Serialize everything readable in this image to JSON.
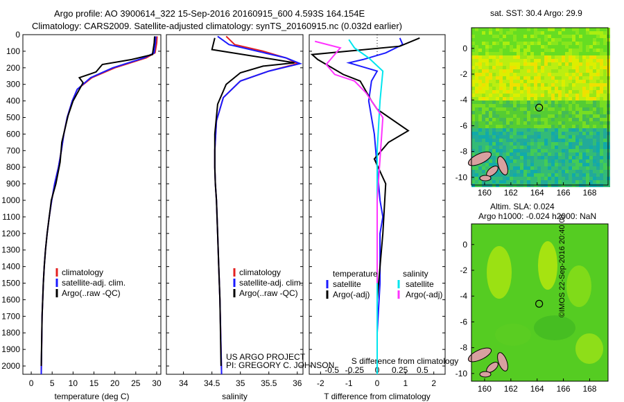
{
  "header": {
    "line1": "Argo profile: AO 3900614_322 15-Sep-2016 20160915_600 4.593S 164.154E",
    "line2": "Climatology: CARS2009. Satellite-adjusted climatology: synTS_20160915.nc (0.032d earlier)"
  },
  "sst_title": "sat. SST: 30.4  Argo: 29.9",
  "sla_title_1": "Altim. SLA: 0.024",
  "sla_title_2": "Argo h1000: -0.024  h2000: NaN",
  "side_stamp": "©IMOS 22-Sep-2016 20:40:08",
  "project": {
    "line1": "US ARGO PROJECT",
    "line2": "PI: GREGORY C. JOHNSON"
  },
  "colors": {
    "climatology": "#e32020",
    "satellite": "#1a1aff",
    "argo": "#000000",
    "argo_adj_salinity": "#ff33ff",
    "satellite_salinity": "#00e5ee"
  },
  "chart_data": [
    {
      "type": "line",
      "xlabel": "temperature (deg C)",
      "ylabel": "",
      "xlim": [
        -2,
        31
      ],
      "ylim": [
        2050,
        0
      ],
      "xticks": [
        "0",
        "5",
        "10",
        "15",
        "20",
        "25",
        "30"
      ],
      "yticks": [
        "0",
        "100",
        "200",
        "300",
        "400",
        "500",
        "600",
        "700",
        "800",
        "900",
        "1000",
        "1100",
        "1200",
        "1300",
        "1400",
        "1500",
        "1600",
        "1700",
        "1800",
        "1900",
        "2000"
      ],
      "legend": [
        "climatology",
        "satellite-adj. clim.",
        "Argo(..raw -QC)"
      ],
      "series": [
        {
          "name": "climatology",
          "color": "#e32020",
          "x": [
            30.1,
            30.0,
            29.6,
            27.5,
            20.0,
            14.5,
            11.0,
            9.8,
            8.6,
            7.8,
            7.2,
            6.5,
            5.6,
            4.9,
            4.3,
            3.8,
            3.4,
            3.1,
            2.9,
            2.6,
            2.4
          ],
          "y": [
            10,
            50,
            110,
            140,
            200,
            260,
            330,
            400,
            500,
            600,
            700,
            800,
            900,
            1000,
            1100,
            1200,
            1300,
            1400,
            1500,
            1700,
            2050
          ]
        },
        {
          "name": "satellite-adj. clim.",
          "color": "#1a1aff",
          "x": [
            29.8,
            29.7,
            29.4,
            27.0,
            19.5,
            14.2,
            11.0,
            9.8,
            8.6,
            7.8,
            7.2,
            6.5,
            5.6,
            4.9,
            4.3,
            3.8,
            3.4,
            3.1,
            2.9,
            2.6,
            2.4
          ],
          "y": [
            10,
            50,
            110,
            140,
            200,
            260,
            330,
            400,
            500,
            600,
            700,
            800,
            900,
            1000,
            1100,
            1200,
            1300,
            1400,
            1500,
            1700,
            2050
          ]
        },
        {
          "name": "Argo(..raw -QC)",
          "color": "#000000",
          "x": [
            29.5,
            29.4,
            29.0,
            24.0,
            17.0,
            15.5,
            11.5,
            12.4,
            10.0,
            8.8,
            7.3,
            6.9,
            5.9,
            4.8,
            4.3,
            3.8,
            3.4,
            3.1,
            2.9,
            2.6,
            2.4
          ],
          "y": [
            10,
            50,
            120,
            150,
            180,
            225,
            260,
            290,
            400,
            490,
            650,
            770,
            900,
            1000,
            1100,
            1200,
            1300,
            1400,
            1500,
            1700,
            2000
          ]
        }
      ]
    },
    {
      "type": "line",
      "xlabel": "salinity",
      "ylabel": "",
      "xlim": [
        33.7,
        36.1
      ],
      "ylim": [
        2050,
        0
      ],
      "xticks": [
        "34",
        "34.5",
        "35",
        "35.5",
        "36"
      ],
      "legend": [
        "climatology",
        "satellite-adj. clim.",
        "Argo(..raw -QC)"
      ],
      "series": [
        {
          "name": "climatology",
          "color": "#e32020",
          "x": [
            34.75,
            34.9,
            35.4,
            35.8,
            36.0,
            35.5,
            35.0,
            34.7,
            34.58,
            34.55,
            34.55,
            34.56,
            34.58,
            34.6,
            34.62,
            34.64,
            34.67
          ],
          "y": [
            10,
            60,
            100,
            140,
            175,
            220,
            280,
            380,
            520,
            700,
            800,
            900,
            1000,
            1200,
            1400,
            1600,
            2050
          ]
        },
        {
          "name": "satellite-adj. clim.",
          "color": "#1a1aff",
          "x": [
            34.6,
            34.8,
            35.3,
            35.8,
            36.05,
            35.5,
            35.0,
            34.7,
            34.58,
            34.55,
            34.55,
            34.56,
            34.58,
            34.6,
            34.62,
            34.64,
            34.67
          ],
          "y": [
            10,
            60,
            100,
            140,
            175,
            220,
            280,
            380,
            520,
            700,
            800,
            900,
            1000,
            1200,
            1400,
            1600,
            2050
          ]
        },
        {
          "name": "Argo(..raw -QC)",
          "color": "#000000",
          "x": [
            34.55,
            34.5,
            35.6,
            35.95,
            35.4,
            35.0,
            34.75,
            34.6,
            34.55,
            34.55,
            34.56,
            34.58,
            34.6,
            34.62,
            34.64,
            34.66
          ],
          "y": [
            20,
            90,
            150,
            170,
            190,
            230,
            300,
            420,
            600,
            800,
            900,
            1000,
            1200,
            1400,
            1600,
            2000
          ]
        }
      ]
    },
    {
      "type": "line",
      "xlabel": "T difference from climatology",
      "xlabel_top": "S difference from climatology",
      "xlim": [
        -2.4,
        2.4
      ],
      "ylim": [
        2050,
        0
      ],
      "xticks": [
        "-2",
        "-1",
        "0",
        "1",
        "2"
      ],
      "xticks_top": [
        "-0.5",
        "-0.25",
        "0",
        "0.25",
        "0.5"
      ],
      "legend_left": [
        "temperature",
        "satellite",
        "Argo(-adj)"
      ],
      "legend_right": [
        "salinity",
        "satellite",
        "Argo(-adj)"
      ],
      "series": [
        {
          "name": "satellite",
          "color": "#1a1aff",
          "x": [
            0.8,
            0.9,
            0.3,
            -0.5,
            -1.0,
            0.0,
            -0.2,
            -0.3,
            -0.1,
            0.0,
            0.1,
            0.2,
            0.1,
            0.1,
            0.0,
            0.0
          ],
          "y": [
            20,
            60,
            110,
            150,
            170,
            220,
            280,
            400,
            600,
            800,
            1000,
            1100,
            1200,
            1500,
            1800,
            2050
          ]
        },
        {
          "name": "Argo(-adj)",
          "color": "#000000",
          "x": [
            1.5,
            0.8,
            -2.3,
            -2.1,
            -1.6,
            -1.2,
            -0.6,
            -0.2,
            0.0,
            1.1,
            0.4,
            -0.1,
            0.3,
            0.2,
            0.0,
            0.0
          ],
          "y": [
            20,
            70,
            120,
            150,
            200,
            240,
            280,
            400,
            450,
            580,
            650,
            750,
            900,
            1200,
            1600,
            2000
          ]
        },
        {
          "name": "satellite",
          "color": "#00e5ee",
          "x": [
            -1.0,
            -0.8,
            -0.3,
            0.2,
            0.1,
            0.0,
            0.0,
            0.0,
            0.0,
            0.0
          ],
          "y": [
            30,
            80,
            140,
            220,
            400,
            700,
            1000,
            1300,
            1700,
            2050
          ]
        },
        {
          "name": "Argo(-adj)",
          "color": "#ff33ff",
          "x": [
            -2.2,
            -1.3,
            -1.8,
            -1.5,
            -0.8,
            -0.4,
            0.2,
            0.1,
            0.0,
            0.0
          ],
          "y": [
            40,
            80,
            180,
            240,
            280,
            350,
            500,
            750,
            1000,
            1500
          ]
        }
      ]
    },
    {
      "type": "heatmap",
      "title": "sat. SST: 30.4  Argo: 29.9",
      "xlim": [
        159,
        169.4
      ],
      "ylim": [
        -10.6,
        1.6
      ],
      "xticks": [
        "160",
        "162",
        "164",
        "166",
        "168"
      ],
      "yticks": [
        "0",
        "-2",
        "-4",
        "-6",
        "-8",
        "-10"
      ],
      "marker": {
        "x": 164.154,
        "y": -4.593
      }
    },
    {
      "type": "heatmap",
      "title": "Altim. SLA: 0.024",
      "xlim": [
        159,
        169.4
      ],
      "ylim": [
        -10.6,
        1.6
      ],
      "xticks": [
        "160",
        "162",
        "164",
        "166",
        "168"
      ],
      "yticks": [
        "0",
        "-2",
        "-4",
        "-6",
        "-8",
        "-10"
      ],
      "marker": {
        "x": 164.154,
        "y": -4.593
      }
    }
  ]
}
